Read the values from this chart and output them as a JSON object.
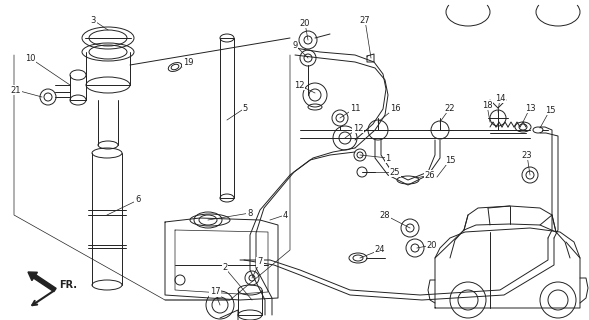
{
  "bg_color": "#ffffff",
  "line_color": "#222222",
  "fig_width": 5.89,
  "fig_height": 3.2,
  "dpi": 100,
  "lw": 0.7
}
